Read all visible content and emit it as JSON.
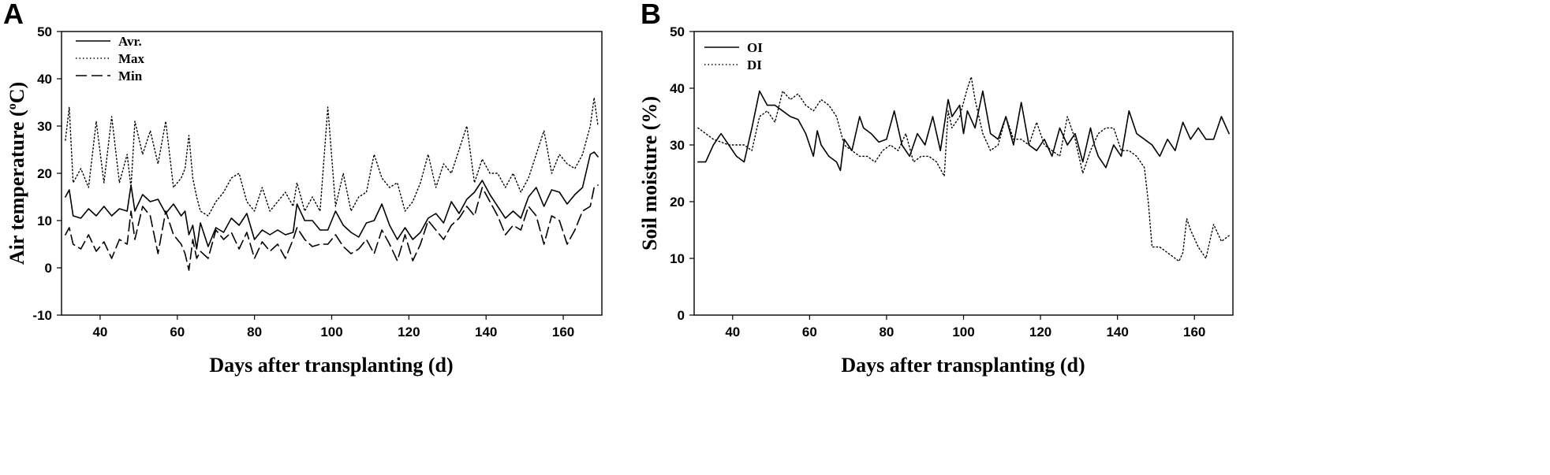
{
  "chart_data": [
    {
      "panel_label": "A",
      "type": "line",
      "xlabel": "Days after transplanting (d)",
      "ylabel": "Air temperature (",
      "ylabel_sup": "o",
      "ylabel_tail": "C)",
      "xlim": [
        30,
        170
      ],
      "ylim": [
        -10,
        50
      ],
      "xticks": [
        40,
        60,
        80,
        100,
        120,
        140,
        160
      ],
      "yticks": [
        -10,
        0,
        10,
        20,
        30,
        40,
        50
      ],
      "legend_position": "top-left",
      "series": [
        {
          "name": "Avr.",
          "style": "solid",
          "x": [
            31,
            32,
            33,
            35,
            37,
            39,
            41,
            43,
            45,
            47,
            48,
            49,
            51,
            53,
            55,
            57,
            59,
            61,
            62,
            63,
            64,
            65,
            66,
            68,
            70,
            72,
            74,
            76,
            78,
            80,
            82,
            84,
            86,
            88,
            90,
            91,
            93,
            95,
            97,
            99,
            101,
            103,
            105,
            107,
            109,
            111,
            113,
            115,
            117,
            119,
            121,
            123,
            125,
            127,
            129,
            131,
            133,
            135,
            137,
            139,
            141,
            143,
            145,
            147,
            149,
            151,
            153,
            155,
            157,
            159,
            161,
            163,
            165,
            167,
            168,
            169
          ],
          "values": [
            15,
            16.5,
            11,
            10.5,
            12.5,
            11,
            13,
            11,
            12.5,
            12,
            17.5,
            12,
            15.5,
            14,
            14.5,
            11.5,
            13.5,
            11,
            12,
            7,
            9,
            4,
            9.5,
            4.5,
            8.5,
            7.5,
            10.5,
            9,
            11.5,
            6,
            8,
            7,
            8,
            7,
            7.5,
            13.5,
            10,
            10,
            8,
            8,
            12,
            9,
            7.5,
            6.5,
            9.5,
            10,
            13.5,
            9,
            6,
            8.5,
            6,
            7.5,
            10.5,
            11.5,
            9.5,
            14,
            11.5,
            14.5,
            16,
            18.5,
            15.5,
            13,
            10.5,
            12,
            10.5,
            15,
            17,
            13,
            16.5,
            16,
            13.5,
            15.5,
            17,
            24,
            24.5,
            23.5
          ]
        },
        {
          "name": "Max",
          "style": "dotted",
          "x": [
            31,
            32,
            33,
            35,
            37,
            39,
            41,
            43,
            45,
            47,
            48,
            49,
            51,
            53,
            55,
            57,
            59,
            61,
            62,
            63,
            64,
            65,
            66,
            68,
            70,
            72,
            74,
            76,
            78,
            80,
            82,
            84,
            86,
            88,
            90,
            91,
            93,
            95,
            97,
            99,
            101,
            103,
            105,
            107,
            109,
            111,
            113,
            115,
            117,
            119,
            121,
            123,
            125,
            127,
            129,
            131,
            133,
            135,
            137,
            139,
            141,
            143,
            145,
            147,
            149,
            151,
            153,
            155,
            157,
            159,
            161,
            163,
            165,
            167,
            168,
            169
          ],
          "values": [
            27,
            34,
            18,
            21,
            17,
            31,
            18,
            32,
            18,
            24,
            17,
            31,
            24,
            29,
            22,
            31,
            17,
            19,
            21,
            28,
            19,
            15,
            12,
            11,
            14,
            16,
            19,
            20,
            14,
            12,
            17,
            12,
            14,
            16,
            13,
            18,
            12,
            15,
            12,
            34,
            13,
            20,
            12,
            15,
            16,
            24,
            19,
            17,
            18,
            12,
            14,
            18,
            24,
            17,
            22,
            20,
            25,
            30,
            18,
            23,
            20,
            20,
            17,
            20,
            16,
            19,
            24,
            29,
            20,
            24,
            22,
            21,
            24,
            30,
            36,
            30
          ]
        },
        {
          "name": "Min",
          "style": "dashed",
          "x": [
            31,
            32,
            33,
            35,
            37,
            39,
            41,
            43,
            45,
            47,
            48,
            49,
            51,
            53,
            55,
            57,
            59,
            61,
            62,
            63,
            64,
            65,
            66,
            68,
            70,
            72,
            74,
            76,
            78,
            80,
            82,
            84,
            86,
            88,
            90,
            91,
            93,
            95,
            97,
            99,
            101,
            103,
            105,
            107,
            109,
            111,
            113,
            115,
            117,
            119,
            121,
            123,
            125,
            127,
            129,
            131,
            133,
            135,
            137,
            139,
            141,
            143,
            145,
            147,
            149,
            151,
            153,
            155,
            157,
            159,
            161,
            163,
            165,
            167,
            168,
            169
          ],
          "values": [
            7,
            8.5,
            5,
            4,
            7,
            3.5,
            5.5,
            2,
            6,
            5,
            12,
            6,
            13,
            11,
            3,
            12,
            7,
            5,
            3,
            -0.5,
            6,
            2,
            3.5,
            2,
            8,
            6,
            7.5,
            4,
            7.5,
            2,
            5.5,
            3.5,
            5,
            2,
            6,
            8.5,
            6,
            4.5,
            5,
            5,
            7,
            4.5,
            3,
            4,
            6,
            3,
            8,
            5,
            1.5,
            7,
            1.5,
            5,
            10,
            8,
            6,
            9,
            10.5,
            13,
            11,
            17,
            14,
            11,
            7,
            9,
            8,
            13,
            11,
            5,
            11,
            10,
            5,
            8,
            12,
            13,
            17,
            17.5
          ]
        }
      ]
    },
    {
      "panel_label": "B",
      "type": "line",
      "xlabel": "Days after transplanting (d)",
      "ylabel": "Soil moisture (%)",
      "xlim": [
        30,
        170
      ],
      "ylim": [
        0,
        50
      ],
      "xticks": [
        40,
        60,
        80,
        100,
        120,
        140,
        160
      ],
      "yticks": [
        0,
        10,
        20,
        30,
        40,
        50
      ],
      "legend_position": "top-left",
      "series": [
        {
          "name": "OI",
          "style": "solid",
          "x": [
            31,
            33,
            35,
            37,
            39,
            41,
            43,
            45,
            47,
            49,
            51,
            53,
            55,
            57,
            59,
            61,
            62,
            63,
            65,
            67,
            68,
            69,
            71,
            73,
            74,
            76,
            78,
            80,
            82,
            84,
            86,
            88,
            90,
            92,
            94,
            96,
            97,
            99,
            100,
            101,
            103,
            105,
            107,
            109,
            111,
            113,
            115,
            117,
            119,
            121,
            123,
            125,
            127,
            129,
            131,
            133,
            134,
            135,
            137,
            139,
            141,
            143,
            145,
            147,
            149,
            151,
            153,
            155,
            157,
            159,
            161,
            163,
            165,
            167,
            169
          ],
          "values": [
            27,
            27,
            30,
            32,
            30,
            28,
            27,
            33,
            39.5,
            37,
            37,
            36,
            35,
            34.5,
            32,
            28,
            32.5,
            30,
            28,
            27,
            25.5,
            31,
            29,
            35,
            33,
            32,
            30.5,
            31,
            36,
            30,
            28,
            32,
            30,
            35,
            29,
            38,
            35,
            37,
            32,
            36,
            33,
            39.5,
            32,
            31,
            35,
            30,
            37.5,
            30,
            29,
            31,
            28,
            33,
            30,
            32,
            27,
            33,
            30,
            28,
            26,
            30,
            28,
            36,
            32,
            31,
            30,
            28,
            31,
            29,
            34,
            31,
            33,
            31,
            31,
            35,
            32
          ]
        },
        {
          "name": "DI",
          "style": "dotted",
          "x": [
            31,
            35,
            39,
            43,
            45,
            47,
            49,
            51,
            53,
            55,
            57,
            59,
            61,
            63,
            65,
            67,
            69,
            71,
            73,
            75,
            77,
            79,
            81,
            83,
            85,
            87,
            89,
            91,
            93,
            95,
            96,
            97,
            99,
            101,
            102,
            103,
            105,
            107,
            109,
            111,
            113,
            115,
            117,
            119,
            121,
            123,
            125,
            127,
            129,
            131,
            133,
            135,
            137,
            139,
            141,
            143,
            145,
            147,
            148,
            149,
            151,
            153,
            155,
            156,
            157,
            158,
            159,
            161,
            163,
            165,
            167,
            169
          ],
          "values": [
            33,
            31,
            30,
            30,
            29,
            35,
            36,
            34,
            39.5,
            38,
            39,
            37,
            36,
            38,
            37,
            35,
            30,
            29,
            28,
            28,
            27,
            29,
            30,
            29,
            32,
            27,
            28,
            28,
            27,
            24.5,
            36,
            33,
            35,
            40,
            42,
            38,
            32,
            29,
            30,
            35,
            31,
            31,
            30,
            34,
            30,
            29,
            28,
            35,
            31,
            25,
            29,
            32,
            33,
            33,
            29,
            29,
            28,
            26,
            20,
            12,
            12,
            11,
            10,
            9.5,
            11,
            17,
            15,
            12,
            10,
            16,
            13,
            14
          ]
        }
      ]
    }
  ]
}
